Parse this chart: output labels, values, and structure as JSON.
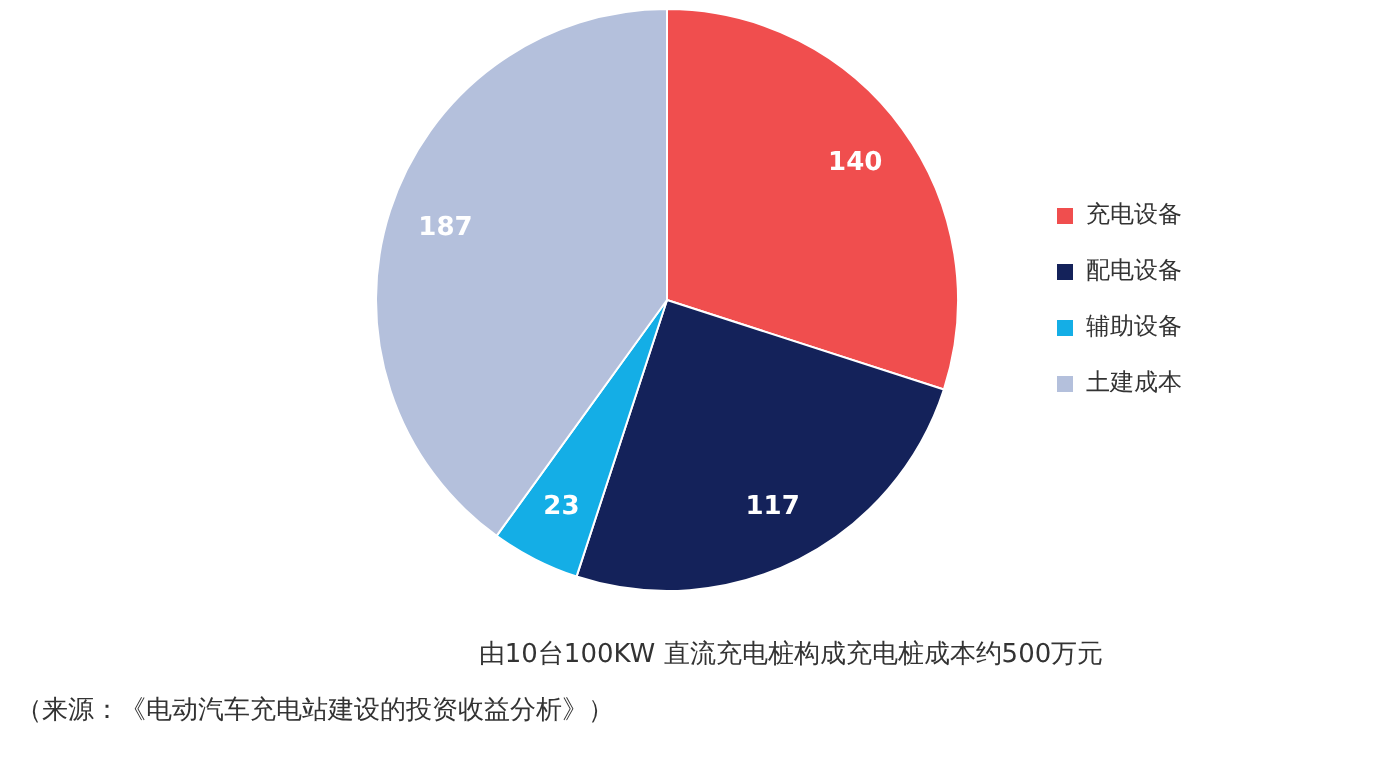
{
  "chart_data": {
    "type": "pie",
    "categories": [
      "充电设备",
      "配电设备",
      "辅助设备",
      "土建成本"
    ],
    "values": [
      140,
      117,
      23,
      187
    ],
    "colors": [
      "#f04e4e",
      "#14225a",
      "#14aee6",
      "#b4c0dc"
    ],
    "data_labels": true,
    "legend": "right",
    "annotations": [
      "由10台100KW 直流充电桩构成充电桩成本约500万元",
      "（来源：《电动汽车充电站建设的投资收益分析》）"
    ]
  }
}
